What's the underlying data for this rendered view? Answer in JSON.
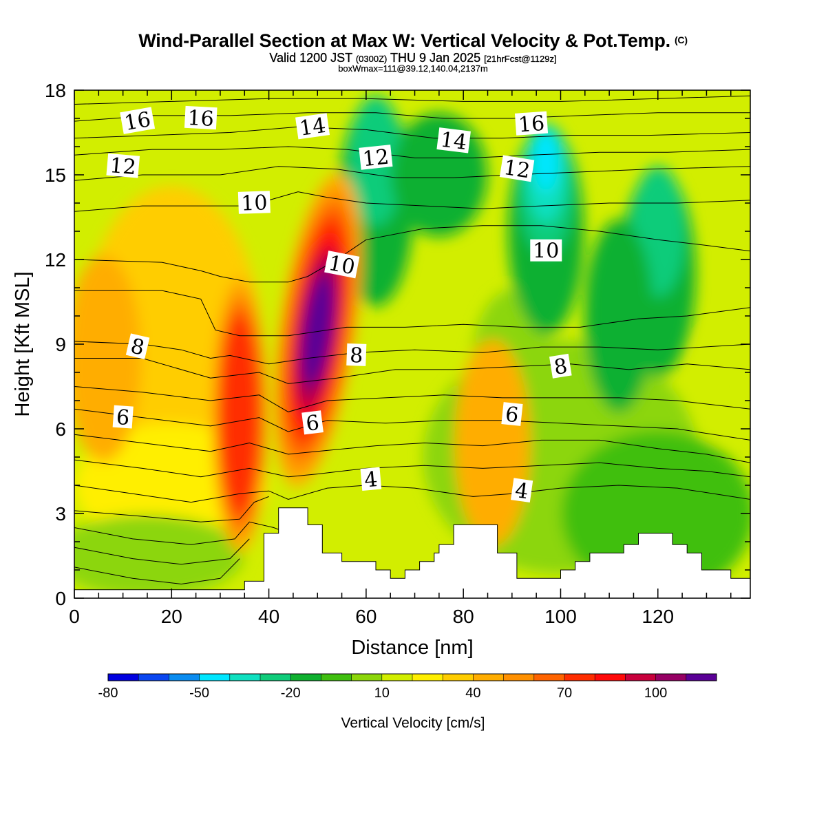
{
  "title": {
    "main": "Wind-Parallel Section at Max W: Vertical Velocity & Pot.Temp.",
    "copyright": "(C)",
    "valid_prefix": "Valid 1200 JST",
    "valid_utc": "(0300Z)",
    "valid_date": "THU 9 Jan 2025",
    "valid_fcst": "[21hrFcst@1129z]",
    "boxinfo": "boxWmax=111@39.12,140.04,2137m"
  },
  "chart_data": {
    "type": "heatmap",
    "xlabel": "Distance [nm]",
    "ylabel": "Height [Kft MSL]",
    "xlim": [
      0,
      139
    ],
    "ylim": [
      0,
      18
    ],
    "xticks": [
      0,
      20,
      40,
      60,
      80,
      100,
      120
    ],
    "yticks": [
      0,
      3,
      6,
      9,
      12,
      15,
      18
    ],
    "colorbar": {
      "label": "Vertical Velocity [cm/s]",
      "tick_labels": [
        "-80",
        "-50",
        "-20",
        "10",
        "40",
        "70",
        "100"
      ],
      "tick_values": [
        -80,
        -50,
        -20,
        10,
        40,
        70,
        100
      ],
      "levels": [
        -80,
        -70,
        -60,
        -50,
        -40,
        -30,
        -20,
        -10,
        0,
        10,
        20,
        30,
        40,
        50,
        60,
        70,
        80,
        90,
        100,
        110
      ],
      "colors": [
        "#0000e0",
        "#0a46f0",
        "#0a8cf0",
        "#00e6ff",
        "#10e0c0",
        "#10cc7a",
        "#10b030",
        "#40bf10",
        "#8cd60a",
        "#d2ee00",
        "#ffef00",
        "#ffcd00",
        "#ffad00",
        "#ff9000",
        "#ff6400",
        "#ff2d00",
        "#ff0a0a",
        "#c8003c",
        "#960064",
        "#5a0096"
      ]
    },
    "w_peak": {
      "value": 111,
      "x": 51,
      "y": 10
    },
    "updraft_cores": [
      {
        "x": 50,
        "y": 9.5,
        "w_max": 111
      },
      {
        "x": 34,
        "y": 6.5,
        "w_max": 75
      },
      {
        "x": 86,
        "y": 5.5,
        "w_max": 45
      },
      {
        "x": 6,
        "y": 8.5,
        "w_max": 40
      }
    ],
    "downdraft_cores": [
      {
        "x": 97,
        "y": 14.5,
        "w_min": -50
      },
      {
        "x": 62,
        "y": 15.5,
        "w_min": -25
      },
      {
        "x": 120,
        "y": 13,
        "w_min": -25
      }
    ],
    "theta_contour_labels": [
      {
        "text": "16",
        "x": 13,
        "y": 16.9
      },
      {
        "text": "16",
        "x": 26,
        "y": 17.0
      },
      {
        "text": "14",
        "x": 49,
        "y": 16.7
      },
      {
        "text": "12",
        "x": 10,
        "y": 15.3
      },
      {
        "text": "12",
        "x": 62,
        "y": 15.6
      },
      {
        "text": "14",
        "x": 78,
        "y": 16.2
      },
      {
        "text": "16",
        "x": 94,
        "y": 16.8
      },
      {
        "text": "12",
        "x": 91,
        "y": 15.2
      },
      {
        "text": "10",
        "x": 37,
        "y": 14.0
      },
      {
        "text": "10",
        "x": 55,
        "y": 11.8
      },
      {
        "text": "10",
        "x": 97,
        "y": 12.3
      },
      {
        "text": "8",
        "x": 13,
        "y": 8.9
      },
      {
        "text": "8",
        "x": 58,
        "y": 8.6
      },
      {
        "text": "8",
        "x": 100,
        "y": 8.2
      },
      {
        "text": "6",
        "x": 10,
        "y": 6.4
      },
      {
        "text": "6",
        "x": 49,
        "y": 6.2
      },
      {
        "text": "6",
        "x": 90,
        "y": 6.5
      },
      {
        "text": "4",
        "x": 61,
        "y": 4.2
      },
      {
        "text": "4",
        "x": 92,
        "y": 3.8
      }
    ],
    "theta_contours": [
      [
        [
          0,
          1.1
        ],
        [
          12,
          0.7
        ],
        [
          22,
          0.5
        ],
        [
          30,
          0.7
        ],
        [
          34,
          1.4
        ]
      ],
      [
        [
          0,
          1.8
        ],
        [
          12,
          1.4
        ],
        [
          22,
          1.2
        ],
        [
          32,
          1.4
        ],
        [
          36,
          2.1
        ]
      ],
      [
        [
          0,
          2.5
        ],
        [
          12,
          2.1
        ],
        [
          24,
          1.9
        ],
        [
          33,
          2.1
        ],
        [
          36,
          2.7
        ],
        [
          41,
          2.5
        ],
        [
          44,
          2.3
        ]
      ],
      [
        [
          0,
          3.1
        ],
        [
          14,
          2.9
        ],
        [
          26,
          2.7
        ],
        [
          34,
          2.8
        ],
        [
          37,
          3.4
        ],
        [
          40,
          3.6
        ]
      ],
      [
        [
          0,
          4.0
        ],
        [
          12,
          3.7
        ],
        [
          24,
          3.4
        ],
        [
          34,
          3.7
        ],
        [
          40,
          3.8
        ],
        [
          44,
          3.5
        ],
        [
          52,
          3.9
        ],
        [
          60,
          4.0
        ],
        [
          70,
          3.9
        ],
        [
          82,
          3.6
        ],
        [
          90,
          3.7
        ],
        [
          100,
          3.9
        ],
        [
          112,
          4.0
        ],
        [
          124,
          3.9
        ],
        [
          139,
          3.5
        ]
      ],
      [
        [
          0,
          4.9
        ],
        [
          14,
          4.6
        ],
        [
          26,
          4.3
        ],
        [
          36,
          4.6
        ],
        [
          44,
          4.3
        ],
        [
          50,
          4.4
        ],
        [
          60,
          4.6
        ],
        [
          72,
          4.7
        ],
        [
          84,
          4.6
        ],
        [
          96,
          4.7
        ],
        [
          108,
          4.8
        ],
        [
          120,
          4.6
        ],
        [
          130,
          4.5
        ],
        [
          139,
          4.3
        ]
      ],
      [
        [
          0,
          5.8
        ],
        [
          14,
          5.5
        ],
        [
          28,
          5.2
        ],
        [
          36,
          5.5
        ],
        [
          44,
          5.1
        ],
        [
          50,
          5.2
        ],
        [
          62,
          5.4
        ],
        [
          72,
          5.5
        ],
        [
          84,
          5.4
        ],
        [
          96,
          5.6
        ],
        [
          108,
          5.6
        ],
        [
          120,
          5.3
        ],
        [
          130,
          5.1
        ],
        [
          139,
          4.8
        ]
      ],
      [
        [
          0,
          6.7
        ],
        [
          14,
          6.4
        ],
        [
          28,
          6.1
        ],
        [
          38,
          6.4
        ],
        [
          44,
          5.9
        ],
        [
          52,
          6.3
        ],
        [
          64,
          6.2
        ],
        [
          76,
          6.3
        ],
        [
          88,
          6.3
        ],
        [
          100,
          6.2
        ],
        [
          112,
          6.1
        ],
        [
          124,
          6.0
        ],
        [
          139,
          5.6
        ]
      ],
      [
        [
          0,
          7.5
        ],
        [
          14,
          7.3
        ],
        [
          28,
          7.0
        ],
        [
          38,
          7.2
        ],
        [
          44,
          6.6
        ],
        [
          52,
          7.0
        ],
        [
          64,
          7.1
        ],
        [
          76,
          7.2
        ],
        [
          88,
          7.1
        ],
        [
          100,
          7.1
        ],
        [
          112,
          7.1
        ],
        [
          124,
          7.0
        ],
        [
          139,
          6.7
        ]
      ],
      [
        [
          0,
          8.5
        ],
        [
          14,
          8.5
        ],
        [
          28,
          7.8
        ],
        [
          38,
          8.0
        ],
        [
          44,
          7.6
        ],
        [
          54,
          7.8
        ],
        [
          66,
          8.1
        ],
        [
          78,
          8.1
        ],
        [
          90,
          8.2
        ],
        [
          102,
          8.3
        ],
        [
          114,
          8.1
        ],
        [
          126,
          8.3
        ],
        [
          139,
          8.1
        ]
      ],
      [
        [
          0,
          9.1
        ],
        [
          14,
          9.0
        ],
        [
          22,
          8.8
        ],
        [
          28,
          8.5
        ],
        [
          32,
          8.6
        ],
        [
          40,
          8.3
        ],
        [
          48,
          8.5
        ],
        [
          58,
          8.7
        ],
        [
          70,
          8.8
        ],
        [
          84,
          8.7
        ],
        [
          96,
          8.9
        ],
        [
          108,
          8.9
        ],
        [
          120,
          8.8
        ],
        [
          139,
          9.0
        ]
      ],
      [
        [
          0,
          10.9
        ],
        [
          18,
          10.9
        ],
        [
          26,
          10.6
        ],
        [
          29,
          9.5
        ],
        [
          34,
          9.3
        ],
        [
          44,
          9.3
        ],
        [
          56,
          9.6
        ],
        [
          68,
          9.6
        ],
        [
          80,
          9.7
        ],
        [
          92,
          9.6
        ],
        [
          104,
          9.6
        ],
        [
          116,
          9.9
        ],
        [
          126,
          10.0
        ],
        [
          139,
          10.3
        ]
      ],
      [
        [
          0,
          12.0
        ],
        [
          18,
          11.9
        ],
        [
          26,
          11.6
        ],
        [
          30,
          11.4
        ],
        [
          36,
          11.2
        ],
        [
          44,
          11.2
        ],
        [
          48,
          11.4
        ],
        [
          54,
          12.0
        ],
        [
          60,
          12.7
        ],
        [
          72,
          13.1
        ],
        [
          84,
          13.2
        ],
        [
          96,
          13.2
        ],
        [
          108,
          13.0
        ],
        [
          120,
          12.7
        ],
        [
          130,
          12.5
        ],
        [
          139,
          12.3
        ]
      ],
      [
        [
          0,
          13.7
        ],
        [
          14,
          13.9
        ],
        [
          24,
          13.9
        ],
        [
          34,
          13.9
        ],
        [
          40,
          14.1
        ],
        [
          46,
          14.4
        ],
        [
          52,
          14.2
        ],
        [
          60,
          14.0
        ],
        [
          72,
          13.9
        ],
        [
          84,
          13.8
        ],
        [
          96,
          13.9
        ],
        [
          110,
          14.0
        ],
        [
          124,
          14.0
        ],
        [
          139,
          14.1
        ]
      ],
      [
        [
          0,
          14.8
        ],
        [
          14,
          15.0
        ],
        [
          30,
          15.0
        ],
        [
          42,
          15.3
        ],
        [
          54,
          15.2
        ],
        [
          66,
          14.9
        ],
        [
          78,
          14.9
        ],
        [
          90,
          15.0
        ],
        [
          104,
          15.1
        ],
        [
          118,
          15.2
        ],
        [
          139,
          15.3
        ]
      ],
      [
        [
          0,
          15.7
        ],
        [
          16,
          15.9
        ],
        [
          30,
          15.9
        ],
        [
          44,
          16.0
        ],
        [
          56,
          15.9
        ],
        [
          70,
          15.6
        ],
        [
          82,
          15.6
        ],
        [
          94,
          15.7
        ],
        [
          108,
          15.8
        ],
        [
          122,
          15.8
        ],
        [
          139,
          15.9
        ]
      ],
      [
        [
          0,
          16.3
        ],
        [
          16,
          16.4
        ],
        [
          32,
          16.5
        ],
        [
          46,
          16.7
        ],
        [
          60,
          16.6
        ],
        [
          74,
          16.3
        ],
        [
          88,
          16.3
        ],
        [
          102,
          16.4
        ],
        [
          118,
          16.4
        ],
        [
          139,
          16.5
        ]
      ],
      [
        [
          0,
          16.9
        ],
        [
          16,
          17.1
        ],
        [
          32,
          17.1
        ],
        [
          48,
          17.2
        ],
        [
          62,
          17.2
        ],
        [
          76,
          17.0
        ],
        [
          90,
          17.0
        ],
        [
          104,
          17.1
        ],
        [
          120,
          17.2
        ],
        [
          139,
          17.2
        ]
      ],
      [
        [
          0,
          17.5
        ],
        [
          20,
          17.6
        ],
        [
          40,
          17.7
        ],
        [
          60,
          17.7
        ],
        [
          80,
          17.6
        ],
        [
          100,
          17.6
        ],
        [
          120,
          17.7
        ],
        [
          139,
          17.8
        ]
      ]
    ],
    "terrain": [
      [
        0,
        0.3
      ],
      [
        35,
        0.3
      ],
      [
        35,
        0.6
      ],
      [
        39,
        0.6
      ],
      [
        39,
        2.3
      ],
      [
        42,
        2.3
      ],
      [
        42,
        3.2
      ],
      [
        48,
        3.2
      ],
      [
        48,
        2.6
      ],
      [
        51,
        2.6
      ],
      [
        51,
        1.6
      ],
      [
        55,
        1.6
      ],
      [
        55,
        1.3
      ],
      [
        62,
        1.3
      ],
      [
        62,
        1.0
      ],
      [
        65,
        1.0
      ],
      [
        65,
        0.7
      ],
      [
        68,
        0.7
      ],
      [
        68,
        1.0
      ],
      [
        71,
        1.0
      ],
      [
        71,
        1.3
      ],
      [
        74,
        1.3
      ],
      [
        74,
        1.6
      ],
      [
        75,
        1.6
      ],
      [
        75,
        1.9
      ],
      [
        78,
        1.9
      ],
      [
        78,
        2.6
      ],
      [
        87,
        2.6
      ],
      [
        87,
        1.6
      ],
      [
        91,
        1.6
      ],
      [
        91,
        0.7
      ],
      [
        100,
        0.7
      ],
      [
        100,
        1.0
      ],
      [
        103,
        1.0
      ],
      [
        103,
        1.3
      ],
      [
        106,
        1.3
      ],
      [
        106,
        1.6
      ],
      [
        113,
        1.6
      ],
      [
        113,
        1.9
      ],
      [
        116,
        1.9
      ],
      [
        116,
        2.3
      ],
      [
        123,
        2.3
      ],
      [
        123,
        1.9
      ],
      [
        126,
        1.9
      ],
      [
        126,
        1.6
      ],
      [
        129,
        1.6
      ],
      [
        129,
        1.0
      ],
      [
        135,
        1.0
      ],
      [
        135,
        0.7
      ],
      [
        139,
        0.7
      ]
    ]
  }
}
